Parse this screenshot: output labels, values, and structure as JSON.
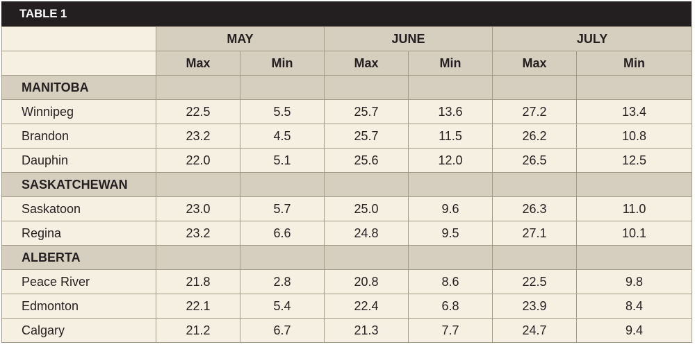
{
  "title": "TABLE 1",
  "months": [
    "MAY",
    "JUNE",
    "JULY"
  ],
  "subheaders": [
    "Max",
    "Min",
    "Max",
    "Min",
    "Max",
    "Min"
  ],
  "sections": [
    {
      "name": "MANITOBA",
      "rows": [
        {
          "city": "Winnipeg",
          "values": [
            "22.5",
            "5.5",
            "25.7",
            "13.6",
            "27.2",
            "13.4"
          ]
        },
        {
          "city": "Brandon",
          "values": [
            "23.2",
            "4.5",
            "25.7",
            "11.5",
            "26.2",
            "10.8"
          ]
        },
        {
          "city": "Dauphin",
          "values": [
            "22.0",
            "5.1",
            "25.6",
            "12.0",
            "26.5",
            "12.5"
          ]
        }
      ]
    },
    {
      "name": "SASKATCHEWAN",
      "rows": [
        {
          "city": "Saskatoon",
          "values": [
            "23.0",
            "5.7",
            "25.0",
            "9.6",
            "26.3",
            "11.0"
          ]
        },
        {
          "city": "Regina",
          "values": [
            "23.2",
            "6.6",
            "24.8",
            "9.5",
            "27.1",
            "10.1"
          ]
        }
      ]
    },
    {
      "name": "ALBERTA",
      "rows": [
        {
          "city": "Peace River",
          "values": [
            "21.8",
            "2.8",
            "20.8",
            "8.6",
            "22.5",
            "9.8"
          ]
        },
        {
          "city": "Edmonton",
          "values": [
            "22.1",
            "5.4",
            "22.4",
            "6.8",
            "23.9",
            "8.4"
          ]
        },
        {
          "city": "Calgary",
          "values": [
            "21.2",
            "6.7",
            "21.3",
            "7.7",
            "24.7",
            "9.4"
          ]
        }
      ]
    }
  ]
}
